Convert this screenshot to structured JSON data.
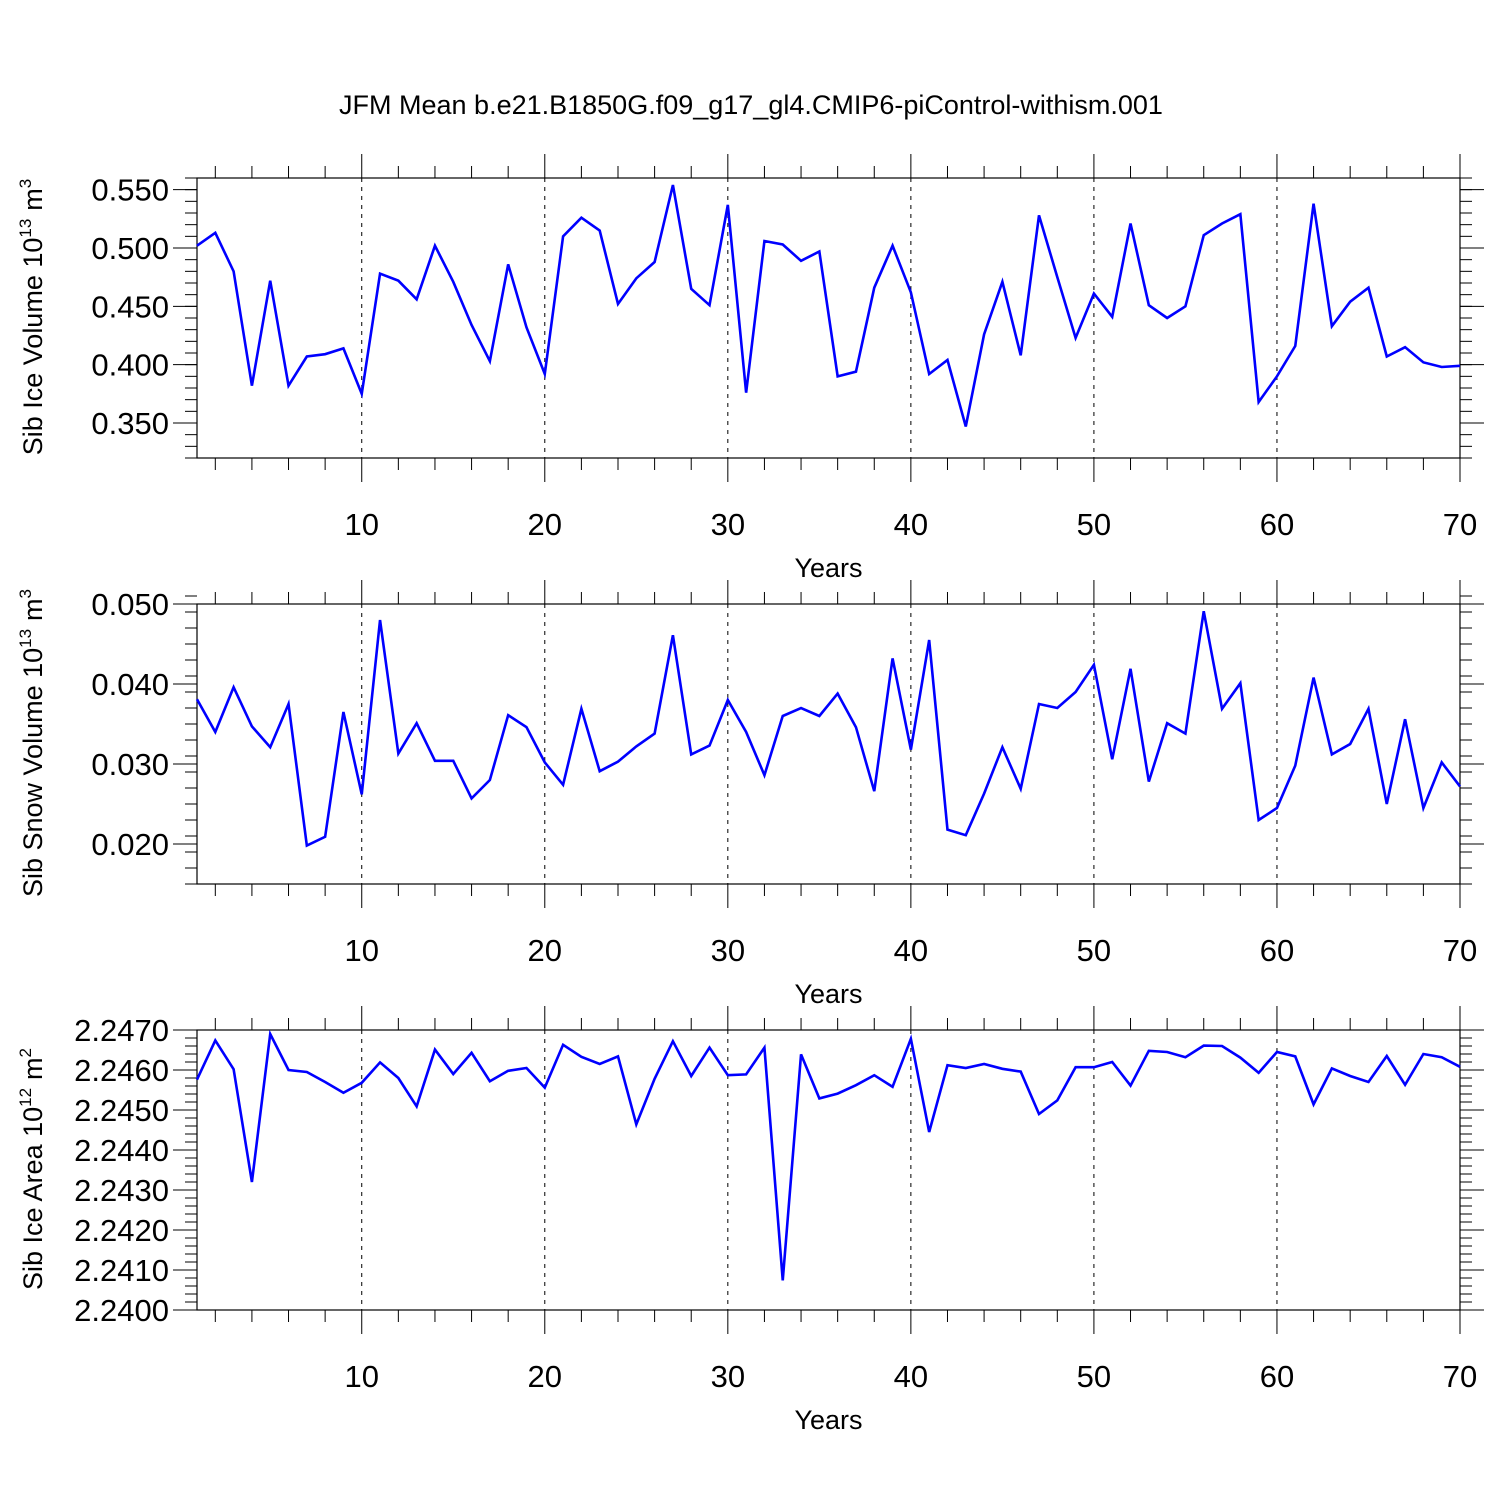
{
  "title": "JFM Mean b.e21.B1850G.f09_g17_gl4.CMIP6-piControl-withism.001",
  "line_color": "#0000ff",
  "chart_data": [
    {
      "type": "line",
      "series_name": "Sib Ice Volume",
      "ylabel_main": "Sib Ice Volume 10",
      "ylabel_exp": "13",
      "ylabel_unit": "m",
      "ylabel_unit_exp": "3",
      "xlabel": "Years",
      "xlim": [
        1,
        70
      ],
      "ylim": [
        0.32,
        0.56
      ],
      "yticks": [
        0.35,
        0.4,
        0.45,
        0.5,
        0.55
      ],
      "ytick_labels": [
        "0.350",
        "0.400",
        "0.450",
        "0.500",
        "0.550"
      ],
      "xticks": [
        10,
        20,
        30,
        40,
        50,
        60,
        70
      ],
      "xtick_labels": [
        "10",
        "20",
        "30",
        "40",
        "50",
        "60",
        "70"
      ],
      "x_start": 1,
      "values": [
        0.502,
        0.513,
        0.48,
        0.382,
        0.472,
        0.382,
        0.407,
        0.409,
        0.414,
        0.375,
        0.478,
        0.472,
        0.456,
        0.502,
        0.471,
        0.434,
        0.403,
        0.486,
        0.432,
        0.392,
        0.51,
        0.526,
        0.515,
        0.452,
        0.474,
        0.488,
        0.554,
        0.465,
        0.451,
        0.537,
        0.376,
        0.506,
        0.503,
        0.489,
        0.497,
        0.39,
        0.394,
        0.466,
        0.502,
        0.462,
        0.392,
        0.404,
        0.347,
        0.426,
        0.471,
        0.408,
        0.528,
        0.475,
        0.423,
        0.461,
        0.441,
        0.521,
        0.451,
        0.44,
        0.45,
        0.511,
        0.521,
        0.529,
        0.368,
        0.39,
        0.416,
        0.538,
        0.433,
        0.454,
        0.466,
        0.407,
        0.415,
        0.402,
        0.398,
        0.399
      ]
    },
    {
      "type": "line",
      "series_name": "Sib Snow Volume",
      "ylabel_main": "Sib Snow Volume 10",
      "ylabel_exp": "13",
      "ylabel_unit": "m",
      "ylabel_unit_exp": "3",
      "xlabel": "Years",
      "xlim": [
        1,
        70
      ],
      "ylim": [
        0.015,
        0.05
      ],
      "yticks": [
        0.02,
        0.03,
        0.04,
        0.05
      ],
      "ytick_labels": [
        "0.020",
        "0.030",
        "0.040",
        "0.050"
      ],
      "xticks": [
        10,
        20,
        30,
        40,
        50,
        60,
        70
      ],
      "xtick_labels": [
        "10",
        "20",
        "30",
        "40",
        "50",
        "60",
        "70"
      ],
      "x_start": 1,
      "values": [
        0.0381,
        0.034,
        0.0396,
        0.0347,
        0.0321,
        0.0375,
        0.0198,
        0.0209,
        0.0365,
        0.0262,
        0.048,
        0.0313,
        0.0351,
        0.0304,
        0.0304,
        0.0257,
        0.028,
        0.0361,
        0.0346,
        0.0302,
        0.0274,
        0.0369,
        0.0291,
        0.0303,
        0.0322,
        0.0338,
        0.0461,
        0.0312,
        0.0323,
        0.038,
        0.034,
        0.0286,
        0.036,
        0.037,
        0.036,
        0.0388,
        0.0346,
        0.0266,
        0.0432,
        0.0318,
        0.0455,
        0.0218,
        0.0211,
        0.0263,
        0.0321,
        0.0269,
        0.0375,
        0.037,
        0.039,
        0.0424,
        0.0306,
        0.0419,
        0.0278,
        0.0351,
        0.0338,
        0.0491,
        0.0369,
        0.0401,
        0.023,
        0.0245,
        0.0298,
        0.0408,
        0.0312,
        0.0325,
        0.0369,
        0.025,
        0.0356,
        0.0245,
        0.0302,
        0.0272
      ]
    },
    {
      "type": "line",
      "series_name": "Sib Ice Area",
      "ylabel_main": "Sib Ice Area 10",
      "ylabel_exp": "12",
      "ylabel_unit": "m",
      "ylabel_unit_exp": "2",
      "xlabel": "Years",
      "xlim": [
        1,
        70
      ],
      "ylim": [
        2.24,
        2.247
      ],
      "yticks": [
        2.24,
        2.241,
        2.242,
        2.243,
        2.244,
        2.245,
        2.246,
        2.247
      ],
      "ytick_labels": [
        "2.2400",
        "2.2410",
        "2.2420",
        "2.2430",
        "2.2440",
        "2.2450",
        "2.2460",
        "2.2470"
      ],
      "xticks": [
        10,
        20,
        30,
        40,
        50,
        60,
        70
      ],
      "xtick_labels": [
        "10",
        "20",
        "30",
        "40",
        "50",
        "60",
        "70"
      ],
      "x_start": 1,
      "values": [
        2.24576,
        2.24674,
        2.24602,
        2.2432,
        2.2469,
        2.246,
        2.24595,
        2.2457,
        2.24543,
        2.24568,
        2.24619,
        2.2458,
        2.24509,
        2.24651,
        2.2459,
        2.24643,
        2.24572,
        2.24598,
        2.24605,
        2.24556,
        2.24663,
        2.24633,
        2.24615,
        2.24634,
        2.24464,
        2.24578,
        2.24672,
        2.24585,
        2.24656,
        2.24587,
        2.24589,
        2.24656,
        2.24074,
        2.24639,
        2.24529,
        2.24541,
        2.24562,
        2.24587,
        2.24558,
        2.24678,
        2.24445,
        2.24612,
        2.24605,
        2.24615,
        2.24603,
        2.24596,
        2.2449,
        2.24524,
        2.24607,
        2.24607,
        2.2462,
        2.24561,
        2.24648,
        2.24645,
        2.24632,
        2.24661,
        2.2466,
        2.24631,
        2.24593,
        2.24645,
        2.24634,
        2.24514,
        2.24604,
        2.24585,
        2.2457,
        2.24635,
        2.24563,
        2.2464,
        2.24632,
        2.24608
      ]
    }
  ]
}
